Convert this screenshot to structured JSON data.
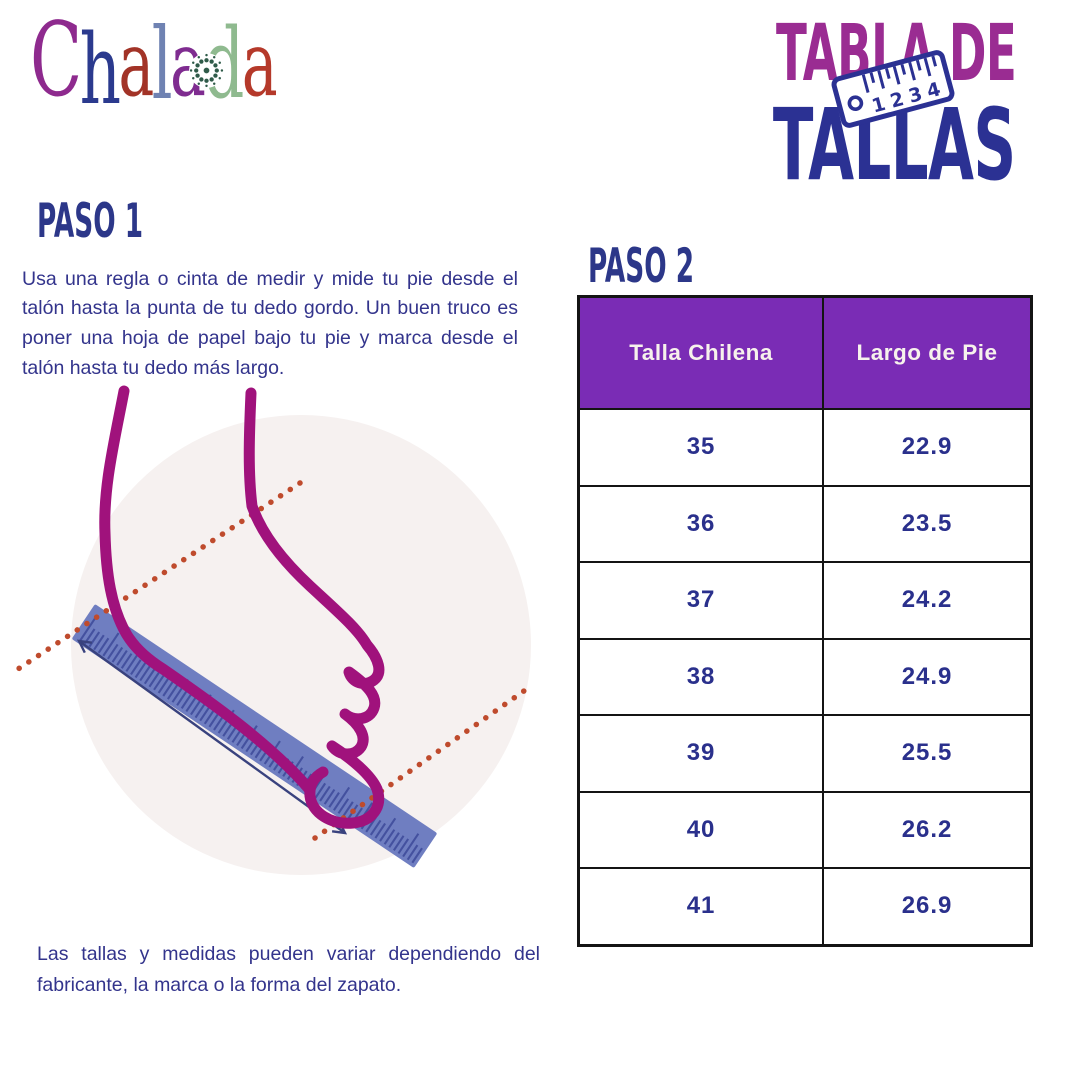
{
  "brand": {
    "name": "Chalada",
    "letters": [
      {
        "ch": "C",
        "color": "#8E2A8E"
      },
      {
        "ch": "h",
        "color": "#2B3A8E"
      },
      {
        "ch": "a",
        "color": "#A23327"
      },
      {
        "ch": "l",
        "color": "#6F82B2"
      },
      {
        "ch": "a",
        "color": "#7F2C90"
      },
      {
        "ch": "d",
        "color": "#8FBA8F"
      },
      {
        "ch": "a",
        "color": "#B5392A"
      }
    ]
  },
  "header": {
    "title_line1": "TABLA DE",
    "title_line2": "TALLAS",
    "ruler_numbers": [
      "1",
      "2",
      "3",
      "4"
    ]
  },
  "step1": {
    "heading": "PASO 1",
    "paragraph": "Usa una regla o cinta de medir y mide tu pie desde el talón hasta la punta de tu dedo gordo. Un buen truco es poner una hoja de papel bajo tu pie y marca desde el talón hasta tu dedo más largo."
  },
  "step2": {
    "heading": "PASO 2"
  },
  "table": {
    "columns": [
      "Talla Chilena",
      "Largo de Pie"
    ],
    "rows": [
      [
        "35",
        "22.9"
      ],
      [
        "36",
        "23.5"
      ],
      [
        "37",
        "24.2"
      ],
      [
        "38",
        "24.9"
      ],
      [
        "39",
        "25.5"
      ],
      [
        "40",
        "26.2"
      ],
      [
        "41",
        "26.9"
      ]
    ]
  },
  "footer": {
    "note": "Las tallas y medidas pueden variar dependiendo del fabricante, la marca o la forma del zapato."
  },
  "colors": {
    "accent_purple": "#7A2CB5",
    "title_magenta": "#9A2C92",
    "navy": "#2B3193",
    "text_indigo": "#33348C",
    "foot_magenta": "#A0127C",
    "ruler_blue": "#6F7EC1",
    "ruler_tick": "#44519F",
    "dotted_orange": "#BF4B2D",
    "arrow_navy": "#39427E",
    "circle_bg": "#F6F1F0"
  }
}
